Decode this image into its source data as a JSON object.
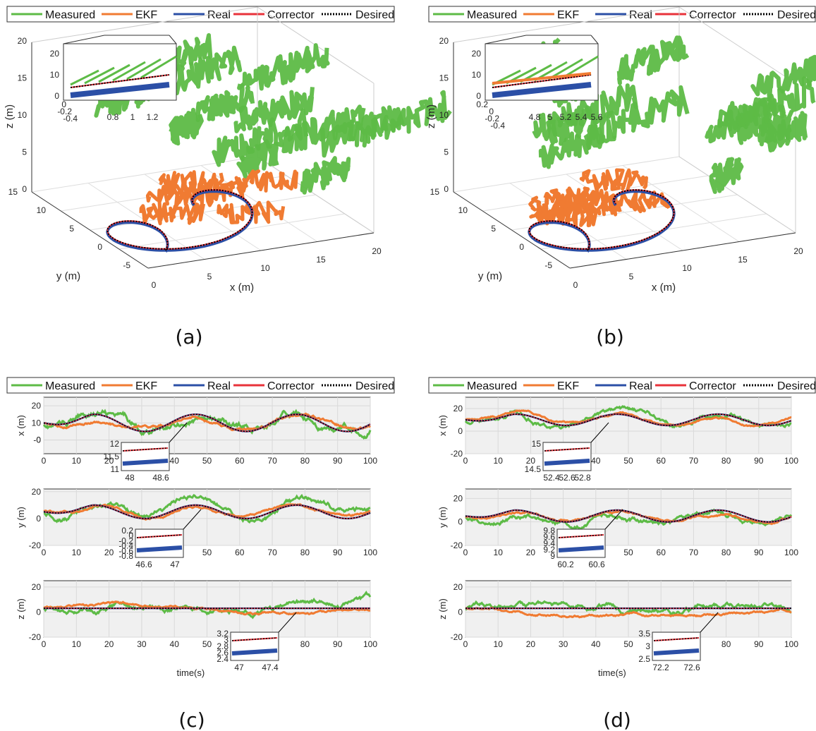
{
  "legend": {
    "entries": [
      {
        "name": "Measured",
        "color": "#5dbb46",
        "style": "solid"
      },
      {
        "name": "EKF",
        "color": "#f07b32",
        "style": "solid"
      },
      {
        "name": "Real",
        "color": "#2b4fa6",
        "style": "solid"
      },
      {
        "name": "Corrector",
        "color": "#e8323a",
        "style": "solid"
      },
      {
        "name": "Desired",
        "color": "#000000",
        "style": "dotted"
      }
    ]
  },
  "panel_labels": [
    "(a)",
    "(b)",
    "(c)",
    "(d)"
  ],
  "colors": {
    "measured": "#5dbb46",
    "ekf": "#f07b32",
    "real": "#2b4fa6",
    "corrector": "#e8323a",
    "desired": "#000000",
    "axes_bg": "#f0f0f0",
    "grid": "#d9d9d9"
  },
  "chart_data": [
    {
      "panel": "(a)",
      "type": "line3d",
      "xlabel": "x (m)",
      "ylabel": "y (m)",
      "zlabel": "z (m)",
      "xticks": [
        "0",
        "5",
        "10",
        "15",
        "20"
      ],
      "yticks": [
        "-5",
        "0",
        "5",
        "10",
        "15"
      ],
      "zticks": [
        "0",
        "5",
        "10",
        "15",
        "20"
      ],
      "xlim": [
        0,
        20
      ],
      "ylim": [
        -5,
        15
      ],
      "zlim": [
        0,
        20
      ],
      "inset": {
        "xticks": [
          "0.8",
          "1",
          "1.2"
        ],
        "yticks": [
          "0",
          "-0.2",
          "-0.4"
        ],
        "zticks": [
          "0",
          "10",
          "20"
        ]
      }
    },
    {
      "panel": "(b)",
      "type": "line3d",
      "xlabel": "x (m)",
      "ylabel": "y (m)",
      "zlabel": "z (m)",
      "xticks": [
        "0",
        "5",
        "10",
        "15",
        "20"
      ],
      "yticks": [
        "-5",
        "0",
        "5",
        "10",
        "15"
      ],
      "zticks": [
        "0",
        "5",
        "10",
        "15",
        "20"
      ],
      "xlim": [
        0,
        20
      ],
      "ylim": [
        -5,
        15
      ],
      "zlim": [
        0,
        20
      ],
      "inset": {
        "xticks": [
          "4.8",
          "5",
          "5.2",
          "5.4",
          "5.6"
        ],
        "yticks": [
          "0.2",
          "0",
          "-0.2",
          "-0.4"
        ],
        "zticks": [
          "0",
          "10",
          "20"
        ]
      }
    },
    {
      "panel": "(c)",
      "type": "line",
      "xlabel": "time(s)",
      "subplots": [
        {
          "ylabel": "x (m)",
          "ylim": [
            -8,
            25
          ],
          "yticks": [
            "-0",
            "0",
            "10",
            "20"
          ],
          "xticks": [
            "0",
            "10",
            "20",
            "30",
            "40",
            "50",
            "60",
            "70",
            "80",
            "90",
            "100"
          ],
          "desired": {
            "offset": 10,
            "amp": 5,
            "period": 31,
            "phase": -1.57
          },
          "inset": {
            "xticks": [
              "48",
              "48.6"
            ],
            "yticks": [
              "12",
              "11.5",
              "11"
            ]
          }
        },
        {
          "ylabel": "y (m)",
          "ylim": [
            -20,
            22
          ],
          "yticks": [
            "-20",
            "0",
            "20"
          ],
          "xticks": [
            "0",
            "10",
            "20",
            "30",
            "40",
            "50",
            "60",
            "70",
            "80",
            "90",
            "100"
          ],
          "desired": {
            "offset": 5,
            "amp": 5,
            "period": 31,
            "phase": -1.57
          },
          "inset": {
            "xticks": [
              "46.6",
              "47"
            ],
            "yticks": [
              "0.2",
              "0",
              "-0.2",
              "-0.4",
              "-0.6",
              "-0.8"
            ]
          }
        },
        {
          "ylabel": "z (m)",
          "ylim": [
            -20,
            25
          ],
          "yticks": [
            "-20",
            "0",
            "20"
          ],
          "xticks": [
            "0",
            "10",
            "20",
            "30",
            "40",
            "50",
            "60",
            "70",
            "80",
            "90",
            "100"
          ],
          "desired": {
            "offset": 3,
            "amp": 0,
            "period": 31,
            "phase": 0
          },
          "inset": {
            "xticks": [
              "47",
              "47.4"
            ],
            "yticks": [
              "3.2",
              "3",
              "2.8",
              "2.6",
              "2.4"
            ]
          }
        }
      ]
    },
    {
      "panel": "(d)",
      "type": "line",
      "xlabel": "time(s)",
      "subplots": [
        {
          "ylabel": "x (m)",
          "ylim": [
            -20,
            30
          ],
          "yticks": [
            "-20",
            "0",
            "20"
          ],
          "xticks": [
            "0",
            "10",
            "20",
            "30",
            "40",
            "50",
            "60",
            "70",
            "80",
            "90",
            "100"
          ],
          "desired": {
            "offset": 10,
            "amp": 5,
            "period": 31,
            "phase": -1.57
          },
          "inset": {
            "xticks": [
              "52.4",
              "52.6",
              "52.8"
            ],
            "yticks": [
              "15",
              "14.5"
            ]
          }
        },
        {
          "ylabel": "y (m)",
          "ylim": [
            -20,
            28
          ],
          "yticks": [
            "-20",
            "0",
            "20"
          ],
          "xticks": [
            "0",
            "10",
            "20",
            "30",
            "40",
            "50",
            "60",
            "70",
            "80",
            "90",
            "100"
          ],
          "desired": {
            "offset": 5,
            "amp": 5,
            "period": 31,
            "phase": -1.57
          },
          "inset": {
            "xticks": [
              "60.2",
              "60.6"
            ],
            "yticks": [
              "9.8",
              "9.6",
              "9.4",
              "9.2",
              "9"
            ]
          }
        },
        {
          "ylabel": "z (m)",
          "ylim": [
            -20,
            25
          ],
          "yticks": [
            "-20",
            "0",
            "20"
          ],
          "xticks": [
            "0",
            "10",
            "20",
            "30",
            "40",
            "50",
            "60",
            "70",
            "80",
            "90",
            "100"
          ],
          "desired": {
            "offset": 3,
            "amp": 0,
            "period": 31,
            "phase": 0
          },
          "inset": {
            "xticks": [
              "72.2",
              "72.6"
            ],
            "yticks": [
              "3.5",
              "3",
              "2.5"
            ]
          }
        }
      ]
    }
  ]
}
